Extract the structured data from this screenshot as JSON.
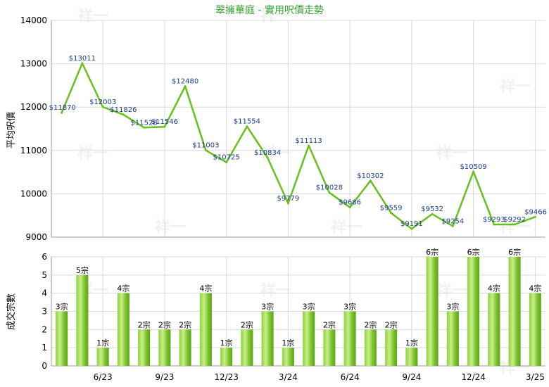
{
  "colors": {
    "line": "#66c21a",
    "bar_light": "#c8ef8a",
    "bar_dark": "#5aa616",
    "grid": "#d9d9d9",
    "title": "#33a02c",
    "point_label": "#1a3d8f"
  },
  "chart_data": [
    {
      "type": "line",
      "title": "翠擁華庭 - 實用呎價走勢",
      "ylabel": "平均呎價",
      "ylim": [
        9000,
        14000
      ],
      "yticks": [
        "14000",
        "13000",
        "12000",
        "11000",
        "10000",
        "9000"
      ],
      "grid": true,
      "series": [
        {
          "values": [
            11870,
            13011,
            12003,
            11826,
            11528,
            11546,
            12480,
            11003,
            10725,
            11554,
            10834,
            9779,
            11113,
            10028,
            9686,
            10302,
            9559,
            9191,
            9532,
            9254,
            10509,
            9293,
            9292,
            9466
          ],
          "labels": [
            "$11870",
            "$13011",
            "$12003",
            "$11826",
            "$11528",
            "$11546",
            "$12480",
            "$11003",
            "$10725",
            "$11554",
            "$10834",
            "$9779",
            "$11113",
            "$10028",
            "$9686",
            "$10302",
            "$9559",
            "$9191",
            "$9532",
            "$9254",
            "$10509",
            "$9293",
            "$9292",
            "$9466"
          ]
        }
      ]
    },
    {
      "type": "bar",
      "ylabel": "成交宗數",
      "ylim": [
        0,
        6
      ],
      "yticks": [
        "6",
        "5",
        "4",
        "3",
        "2",
        "1",
        "0"
      ],
      "grid": true,
      "xticks": [
        "6/23",
        "9/23",
        "12/23",
        "3/24",
        "6/24",
        "9/24",
        "12/24",
        "3/25"
      ],
      "values": [
        3,
        5,
        1,
        4,
        2,
        2,
        2,
        4,
        1,
        2,
        3,
        1,
        3,
        2,
        3,
        2,
        2,
        1,
        6,
        3,
        6,
        4,
        6,
        4
      ],
      "labels": [
        "3宗",
        "5宗",
        "1宗",
        "4宗",
        "2宗",
        "2宗",
        "2宗",
        "4宗",
        "1宗",
        "2宗",
        "3宗",
        "1宗",
        "3宗",
        "2宗",
        "3宗",
        "2宗",
        "2宗",
        "1宗",
        "6宗",
        "3宗",
        "6宗",
        "4宗",
        "6宗",
        "4宗"
      ]
    }
  ],
  "watermark": "祥一"
}
